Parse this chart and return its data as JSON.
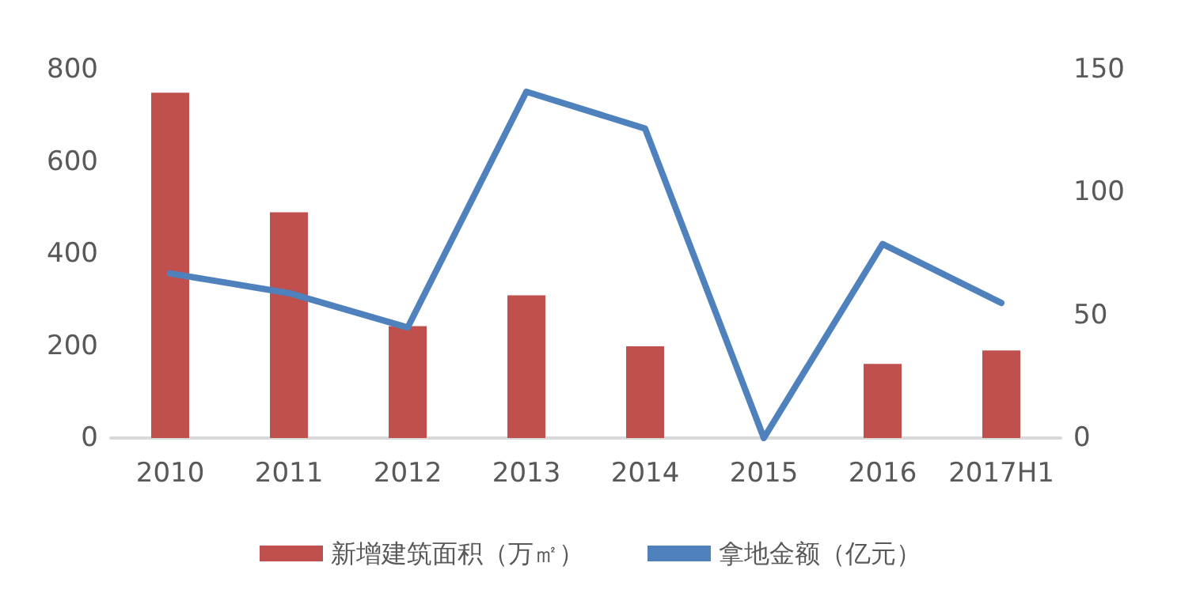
{
  "chart_data": {
    "type": "bar",
    "categories": [
      "2010",
      "2011",
      "2012",
      "2013",
      "2014",
      "2015",
      "2016",
      "2017H1"
    ],
    "series": [
      {
        "name": "新增建筑面积（万㎡）",
        "color": "#c0504d",
        "values": [
          750,
          490,
          243,
          310,
          199,
          null,
          161,
          190
        ]
      },
      {
        "name": "拿地金额（亿元）",
        "type": "line",
        "axis": "y2",
        "color": "#4f81bd",
        "values": [
          67,
          59,
          45,
          141,
          126,
          0,
          79,
          55
        ]
      }
    ],
    "ylim": [
      0,
      800
    ],
    "yticks": [
      0,
      200,
      400,
      600,
      800
    ],
    "y2lim": [
      0,
      150
    ],
    "y2ticks": [
      0,
      50,
      100,
      150
    ],
    "grid": false,
    "legend": "bottom",
    "marker": "none",
    "line_style": "solid"
  }
}
